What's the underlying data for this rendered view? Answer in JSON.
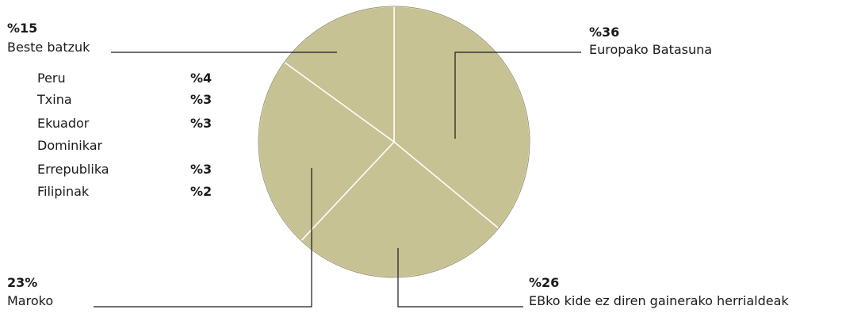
{
  "chart_data": {
    "type": "pie",
    "slices": [
      {
        "label": "Europako Batasuna",
        "value": 36,
        "value_label": "%36",
        "color": "#c6c293"
      },
      {
        "label": "EBko kide ez diren gainerako herrialdeak",
        "value": 26,
        "value_label": "%26",
        "color": "#c6c293"
      },
      {
        "label": "Maroko",
        "value": 23,
        "value_label": "23%",
        "color": "#c6c293"
      },
      {
        "label": "Beste batzuk",
        "value": 15,
        "value_label": "%15",
        "color": "#c6c293"
      }
    ],
    "others_breakdown": [
      {
        "label": "Peru",
        "value": 4,
        "value_label": "%4"
      },
      {
        "label": "Txina",
        "value": 3,
        "value_label": "%3"
      },
      {
        "label": "Ekuador",
        "value": 3,
        "value_label": "%3"
      },
      {
        "label": "Dominikar Errepublika",
        "label_line1": "Dominikar",
        "label_line2": "Errepublika",
        "value": 3,
        "value_label": "%3"
      },
      {
        "label": "Filipinak",
        "value": 2,
        "value_label": "%2"
      }
    ],
    "start_angle_deg": 0,
    "slice_border_color": "#ffffff",
    "pie_edge_color": "#9b9670",
    "leader_line_color": "#1a1a1a"
  }
}
